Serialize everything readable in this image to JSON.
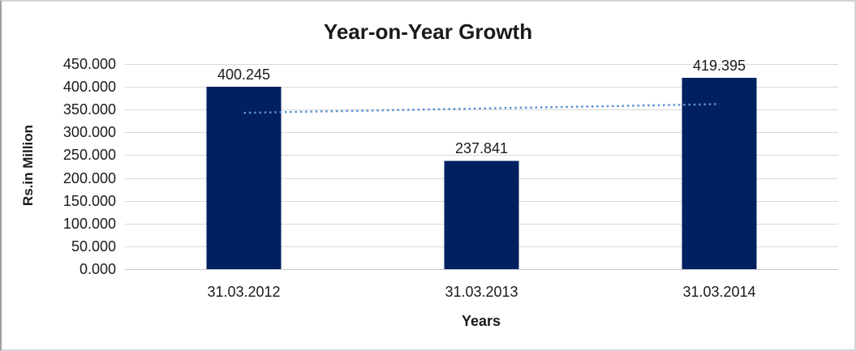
{
  "chart_data": {
    "type": "bar",
    "title": "Year-on-Year Growth",
    "categories": [
      "31.03.2012",
      "31.03.2013",
      "31.03.2014"
    ],
    "values": [
      400.245,
      237.841,
      419.395
    ],
    "value_labels": [
      "400.245",
      "237.841",
      "419.395"
    ],
    "xlabel": "Years",
    "ylabel": "Rs.in Million",
    "ylim": [
      0,
      450
    ],
    "ytick_step": 50,
    "ytick_labels": [
      "0.000",
      "50.000",
      "100.000",
      "150.000",
      "200.000",
      "250.000",
      "300.000",
      "350.000",
      "400.000",
      "450.000"
    ],
    "grid": true,
    "legend": "none",
    "trendline": {
      "type": "linear",
      "style": "dotted",
      "start_value": 342.9,
      "end_value": 362.1
    },
    "colors": {
      "bar": "#002060",
      "trendline": "#5b8fd4",
      "gridline": "#d9d9d9",
      "axis_line": "#c6c6c6",
      "text": "#1a1a1a",
      "background": "#ffffff",
      "frame_border": "#d4d4d4"
    }
  }
}
